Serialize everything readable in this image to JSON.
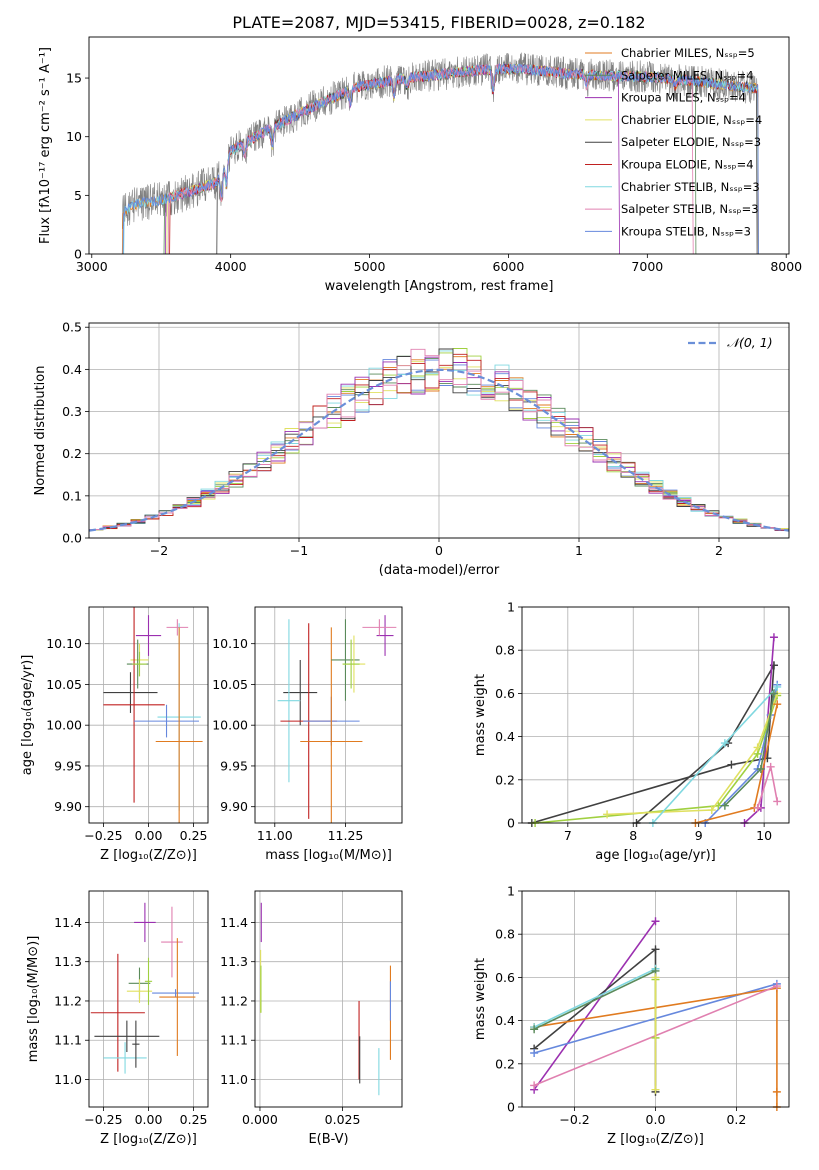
{
  "figure": {
    "title": "PLATE=2087, MJD=53415, FIBERID=0028, z=0.182"
  },
  "colors": {
    "models": [
      "#e07b20",
      "#5a8a5a",
      "#9b30b0",
      "#e0e060",
      "#404040",
      "#c02020",
      "#80d8e0",
      "#e080b0",
      "#6688dd",
      "#a0d040"
    ],
    "data": "#808080",
    "normal": "#6a8fd8",
    "grid": "#b0b0b0"
  },
  "chart_data": [
    {
      "id": "spectrum",
      "type": "line",
      "title": "PLATE=2087, MJD=53415, FIBERID=0028, z=0.182",
      "xlabel": "wavelength [Angstrom, rest frame]",
      "ylabel": "Flux [fλ10⁻¹⁷ erg cm⁻² s⁻¹ A⁻¹]",
      "xlim": [
        2980,
        8020
      ],
      "ylim": [
        0,
        18.5
      ],
      "xticks": [
        3000,
        4000,
        5000,
        6000,
        7000,
        8000
      ],
      "yticks": [
        0,
        5,
        10,
        15
      ],
      "continuum": {
        "x": [
          3220,
          3300,
          3500,
          3700,
          3900,
          4000,
          4300,
          4600,
          4900,
          5200,
          5500,
          5800,
          6100,
          6400,
          6700,
          7000,
          7300,
          7500,
          7800
        ],
        "y": [
          3.6,
          4.2,
          4.6,
          5.3,
          6.1,
          8.8,
          10.8,
          12.6,
          14.2,
          14.9,
          15.3,
          15.7,
          15.8,
          15.4,
          15.2,
          15.1,
          14.8,
          14.5,
          14.1
        ]
      },
      "legend": {
        "position": "upper right",
        "entries": [
          "Chabrier MILES, Nₛₛₚ=5",
          "Salpeter MILES, Nₛₛₚ=4",
          "Kroupa MILES, Nₛₛₚ=4",
          "Chabrier ELODIE, Nₛₛₚ=4",
          "Salpeter ELODIE, Nₛₛₚ=3",
          "Kroupa ELODIE, Nₛₛₚ=4",
          "Chabrier STELIB, Nₛₛₚ=3",
          "Salpeter STELIB, Nₛₛₚ=3",
          "Kroupa STELIB, Nₛₛₚ=3"
        ]
      }
    },
    {
      "id": "residuals",
      "type": "histogram",
      "xlabel": "(data-model)/error",
      "ylabel": "Normed distribution",
      "xlim": [
        -2.5,
        2.5
      ],
      "ylim": [
        0,
        0.51
      ],
      "xticks": [
        -2,
        -1,
        0,
        1,
        2
      ],
      "yticks": [
        0.0,
        0.1,
        0.2,
        0.3,
        0.4,
        0.5
      ],
      "bin_width": 0.1,
      "legend": {
        "position": "upper right",
        "entries": [
          "𝒩(0, 1)"
        ]
      }
    },
    {
      "id": "age-vs-Z",
      "type": "scatter",
      "xlabel": "Z [log₁₀(Z/Z⊙)]",
      "ylabel": "age  [log₁₀(age/yr)]",
      "xlim": [
        -0.33,
        0.33
      ],
      "ylim": [
        9.88,
        10.145
      ],
      "xticks": [
        -0.25,
        0.0,
        0.25
      ],
      "yticks": [
        9.9,
        9.95,
        10.0,
        10.05,
        10.1
      ],
      "xticklabels": [
        "−0.25",
        "0.00",
        "0.25"
      ],
      "yticklabels": [
        "9.90",
        "9.95",
        "10.00",
        "10.05",
        "10.10"
      ],
      "points": [
        {
          "x": 0.0,
          "y": 10.11,
          "xerr": 0.07,
          "yerr": 0.025,
          "color": 2
        },
        {
          "x": 0.16,
          "y": 10.12,
          "xerr": 0.06,
          "yerr": 0.01,
          "color": 7
        },
        {
          "x": 0.17,
          "y": 10.01,
          "xerr": 0.12,
          "yerr": 0.115,
          "color": 6
        },
        {
          "x": -0.05,
          "y": 10.08,
          "xerr": 0.05,
          "yerr": 0.02,
          "color": 3
        },
        {
          "x": -0.06,
          "y": 10.075,
          "xerr": 0.06,
          "yerr": 0.03,
          "color": 1
        },
        {
          "x": -0.1,
          "y": 10.04,
          "xerr": 0.15,
          "yerr": 0.025,
          "color": 4
        },
        {
          "x": -0.08,
          "y": 10.025,
          "xerr": 0.17,
          "yerr": 0.12,
          "color": 5
        },
        {
          "x": 0.1,
          "y": 10.005,
          "xerr": 0.18,
          "yerr": 0.02,
          "color": 8
        },
        {
          "x": 0.17,
          "y": 9.98,
          "xerr": 0.13,
          "yerr": 0.14,
          "color": 0
        },
        {
          "x": -0.05,
          "y": 10.075,
          "xerr": 0.04,
          "yerr": 0.015,
          "color": 9
        }
      ]
    },
    {
      "id": "age-vs-mass",
      "type": "scatter",
      "xlabel": "mass [log₁₀(M/M⊙)]",
      "ylabel": "",
      "xlim": [
        10.93,
        11.45
      ],
      "ylim": [
        9.88,
        10.145
      ],
      "xticks": [
        11.0,
        11.25
      ],
      "yticks": [
        9.9,
        9.95,
        10.0,
        10.05,
        10.1
      ],
      "xticklabels": [
        "11.00",
        "11.25"
      ],
      "yticklabels": [
        "9.90",
        "9.95",
        "10.00",
        "10.05",
        "10.10"
      ],
      "points": [
        {
          "x": 11.39,
          "y": 10.11,
          "xerr": 0.03,
          "yerr": 0.025,
          "color": 2
        },
        {
          "x": 11.37,
          "y": 10.12,
          "xerr": 0.06,
          "yerr": 0.01,
          "color": 7
        },
        {
          "x": 11.09,
          "y": 10.04,
          "xerr": 0.06,
          "yerr": 0.04,
          "color": 4
        },
        {
          "x": 11.05,
          "y": 10.03,
          "xerr": 0.04,
          "yerr": 0.1,
          "color": 6
        },
        {
          "x": 11.12,
          "y": 10.005,
          "xerr": 0.1,
          "yerr": 0.12,
          "color": 5
        },
        {
          "x": 11.2,
          "y": 10.005,
          "xerr": 0.1,
          "yerr": 0.03,
          "color": 8
        },
        {
          "x": 11.2,
          "y": 9.98,
          "xerr": 0.11,
          "yerr": 0.14,
          "color": 0
        },
        {
          "x": 11.25,
          "y": 10.08,
          "xerr": 0.05,
          "yerr": 0.05,
          "color": 1
        },
        {
          "x": 11.28,
          "y": 10.075,
          "xerr": 0.04,
          "yerr": 0.035,
          "color": 3
        },
        {
          "x": 11.27,
          "y": 10.075,
          "xerr": 0.03,
          "yerr": 0.03,
          "color": 9
        }
      ]
    },
    {
      "id": "weight-vs-age",
      "type": "line",
      "xlabel": "age  [log₁₀(age/yr)]",
      "ylabel": "mass weight",
      "xlim": [
        6.3,
        10.38
      ],
      "ylim": [
        0,
        1.0
      ],
      "xticks": [
        7,
        8,
        9,
        10
      ],
      "yticks": [
        0.0,
        0.2,
        0.4,
        0.6,
        0.8,
        1.0
      ],
      "series": [
        {
          "color": 4,
          "x": [
            6.45,
            9.5,
            10.05,
            10.15
          ],
          "y": [
            0.0,
            0.27,
            0.3,
            0.73
          ]
        },
        {
          "color": 4,
          "x": [
            8.05,
            9.45,
            10.15
          ],
          "y": [
            0.0,
            0.37,
            0.73
          ]
        },
        {
          "color": 2,
          "x": [
            9.7,
            9.95,
            10.15
          ],
          "y": [
            0.0,
            0.07,
            0.86
          ]
        },
        {
          "color": 8,
          "x": [
            9.1,
            9.9,
            10.1,
            10.2
          ],
          "y": [
            0.0,
            0.25,
            0.5,
            0.64
          ]
        },
        {
          "color": 9,
          "x": [
            6.5,
            9.3,
            9.9,
            10.2
          ],
          "y": [
            0.0,
            0.08,
            0.32,
            0.59
          ]
        },
        {
          "color": 3,
          "x": [
            7.6,
            9.2,
            9.9,
            10.2
          ],
          "y": [
            0.04,
            0.06,
            0.35,
            0.6
          ]
        },
        {
          "color": 6,
          "x": [
            8.3,
            9.4,
            10.2
          ],
          "y": [
            0.0,
            0.37,
            0.63
          ]
        },
        {
          "color": 0,
          "x": [
            8.95,
            9.85,
            10.2
          ],
          "y": [
            0.0,
            0.07,
            0.55
          ]
        },
        {
          "color": 7,
          "x": [
            9.9,
            10.1,
            10.2
          ],
          "y": [
            0.07,
            0.26,
            0.1
          ]
        },
        {
          "color": 1,
          "x": [
            9.4,
            9.95,
            10.15
          ],
          "y": [
            0.08,
            0.25,
            0.6
          ]
        }
      ]
    },
    {
      "id": "mass-vs-Z",
      "type": "scatter",
      "xlabel": "Z [log₁₀(Z/Z⊙)]",
      "ylabel": "mass [log₁₀(M/M⊙)]",
      "xlim": [
        -0.33,
        0.33
      ],
      "ylim": [
        10.93,
        11.48
      ],
      "xticks": [
        -0.25,
        0.0,
        0.25
      ],
      "yticks": [
        11.0,
        11.1,
        11.2,
        11.3,
        11.4
      ],
      "xticklabels": [
        "−0.25",
        "0.00",
        "0.25"
      ],
      "yticklabels": [
        "11.0",
        "11.1",
        "11.2",
        "11.3",
        "11.4"
      ],
      "points": [
        {
          "x": -0.02,
          "y": 11.4,
          "xerr": 0.06,
          "yerr": 0.05,
          "color": 2
        },
        {
          "x": 0.13,
          "y": 11.35,
          "xerr": 0.06,
          "yerr": 0.09,
          "color": 7
        },
        {
          "x": 0.15,
          "y": 11.22,
          "xerr": 0.13,
          "yerr": 0.01,
          "color": 8
        },
        {
          "x": 0.16,
          "y": 11.21,
          "xerr": 0.1,
          "yerr": 0.15,
          "color": 0
        },
        {
          "x": -0.05,
          "y": 11.245,
          "xerr": 0.06,
          "yerr": 0.04,
          "color": 1
        },
        {
          "x": -0.05,
          "y": 11.225,
          "xerr": 0.07,
          "yerr": 0.03,
          "color": 3
        },
        {
          "x": -0.17,
          "y": 11.17,
          "xerr": 0.15,
          "yerr": 0.15,
          "color": 5
        },
        {
          "x": -0.12,
          "y": 11.11,
          "xerr": 0.18,
          "yerr": 0.04,
          "color": 4
        },
        {
          "x": -0.13,
          "y": 11.055,
          "xerr": 0.12,
          "yerr": 0.04,
          "color": 6
        },
        {
          "x": -0.07,
          "y": 11.09,
          "xerr": 0.02,
          "yerr": 0.06,
          "color": 4
        },
        {
          "x": 0.0,
          "y": 11.25,
          "xerr": 0.02,
          "yerr": 0.06,
          "color": 9
        }
      ]
    },
    {
      "id": "mass-vs-EBV",
      "type": "scatter",
      "xlabel": "E(B-V)",
      "ylabel": "",
      "xlim": [
        -0.0015,
        0.043
      ],
      "ylim": [
        10.93,
        11.48
      ],
      "xticks": [
        0.0,
        0.025
      ],
      "yticks": [
        11.0,
        11.1,
        11.2,
        11.3,
        11.4
      ],
      "xticklabels": [
        "0.000",
        "0.025"
      ],
      "yticklabels": [
        "11.0",
        "11.1",
        "11.2",
        "11.3",
        "11.4"
      ],
      "points": [
        {
          "x": 0.0004,
          "y": 11.4,
          "xerr": 0.0,
          "yerr": 0.05,
          "color": 2
        },
        {
          "x": 0.0002,
          "y": 11.25,
          "xerr": 0.0,
          "yerr": 0.08,
          "color": 3
        },
        {
          "x": 0.0003,
          "y": 11.23,
          "xerr": 0.0,
          "yerr": 0.06,
          "color": 9
        },
        {
          "x": 0.03,
          "y": 11.1,
          "xerr": 0.0,
          "yerr": 0.1,
          "color": 5
        },
        {
          "x": 0.0302,
          "y": 11.05,
          "xerr": 0.0,
          "yerr": 0.06,
          "color": 4
        },
        {
          "x": 0.0395,
          "y": 11.17,
          "xerr": 0.0,
          "yerr": 0.12,
          "color": 0
        },
        {
          "x": 0.036,
          "y": 11.02,
          "xerr": 0.0,
          "yerr": 0.06,
          "color": 6
        },
        {
          "x": 0.0395,
          "y": 11.2,
          "xerr": 0.0,
          "yerr": 0.05,
          "color": 8
        }
      ]
    },
    {
      "id": "weight-vs-Z",
      "type": "line",
      "xlabel": "Z [log₁₀(Z/Z⊙)]",
      "ylabel": "mass weight",
      "xlim": [
        -0.33,
        0.33
      ],
      "ylim": [
        0,
        1.0
      ],
      "xticks": [
        -0.2,
        0.0,
        0.2
      ],
      "yticks": [
        0.0,
        0.2,
        0.4,
        0.6,
        0.8,
        1.0
      ],
      "xticklabels": [
        "−0.2",
        "0.0",
        "0.2"
      ],
      "series": [
        {
          "color": 2,
          "x": [
            -0.3,
            0.0
          ],
          "y": [
            0.08,
            0.86
          ]
        },
        {
          "color": 4,
          "x": [
            -0.3,
            0.0,
            0.0
          ],
          "y": [
            0.27,
            0.73,
            0.07
          ]
        },
        {
          "color": 8,
          "x": [
            -0.3,
            0.3
          ],
          "y": [
            0.25,
            0.57
          ]
        },
        {
          "color": 0,
          "x": [
            -0.3,
            0.3,
            0.3,
            0.3
          ],
          "y": [
            0.37,
            0.55,
            0.07,
            0.0
          ]
        },
        {
          "color": 7,
          "x": [
            -0.3,
            0.3
          ],
          "y": [
            0.1,
            0.56
          ]
        },
        {
          "color": 6,
          "x": [
            -0.3,
            0.0
          ],
          "y": [
            0.37,
            0.64
          ]
        },
        {
          "color": 1,
          "x": [
            -0.3,
            0.0
          ],
          "y": [
            0.36,
            0.63
          ]
        },
        {
          "color": 9,
          "x": [
            0.0,
            0.0
          ],
          "y": [
            0.59,
            0.32
          ]
        },
        {
          "color": 3,
          "x": [
            0.0,
            0.0
          ],
          "y": [
            0.6,
            0.08
          ]
        }
      ]
    }
  ]
}
